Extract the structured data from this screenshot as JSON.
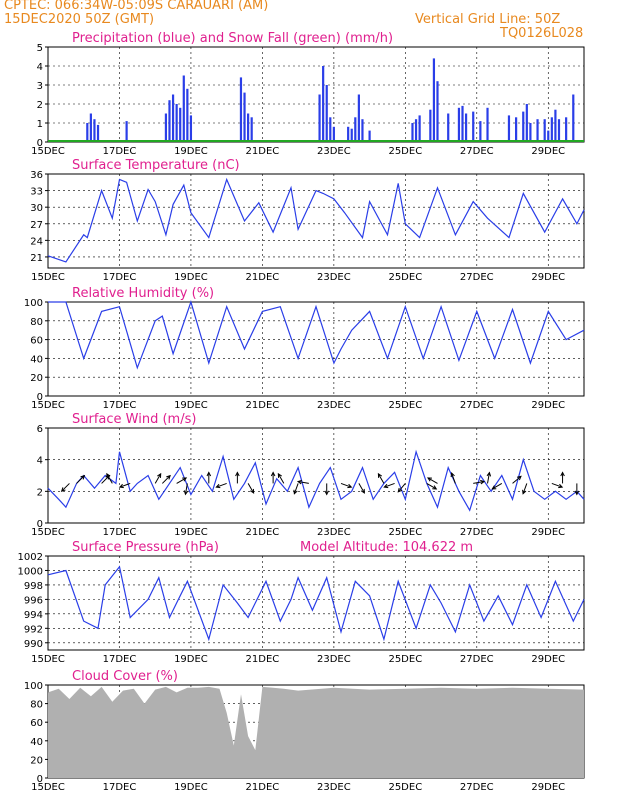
{
  "header": {
    "line1": "CPTEC:   066:34W-05:09S   CARAUARI (AM)",
    "line2": "15DEC2020 50Z (GMT)",
    "grid_note": "Vertical Grid Line: 50Z",
    "code": "TQ0126L028",
    "model_altitude": "Model Altitude: 104.622 m"
  },
  "colors": {
    "header": "#e8891f",
    "title": "#e0208f",
    "series": "#2a3ee8",
    "snow": "#22a822",
    "cloud": "#b0b0b0",
    "wind_arrow": "#000000"
  },
  "x_axis": {
    "ticks": [
      "15DEC",
      "17DEC",
      "19DEC",
      "21DEC",
      "23DEC",
      "25DEC",
      "27DEC",
      "29DEC"
    ],
    "range_days": [
      0,
      15
    ]
  },
  "chart_data": [
    {
      "id": "precip",
      "type": "bar",
      "title": "Precipitation (blue) and Snow Fall (green) (mm/h)",
      "ylim": [
        0,
        5
      ],
      "yticks": [
        0,
        1,
        2,
        3,
        4,
        5
      ],
      "series": [
        {
          "name": "Precipitation",
          "points": [
            [
              1.1,
              1.0
            ],
            [
              1.2,
              1.5
            ],
            [
              1.3,
              1.2
            ],
            [
              1.4,
              0.9
            ],
            [
              2.2,
              1.1
            ],
            [
              3.5,
              0.1
            ],
            [
              3.3,
              1.5
            ],
            [
              3.4,
              2.2
            ],
            [
              3.5,
              2.5
            ],
            [
              3.6,
              2.0
            ],
            [
              3.7,
              1.8
            ],
            [
              3.8,
              3.5
            ],
            [
              3.9,
              2.8
            ],
            [
              4.0,
              1.4
            ],
            [
              5.4,
              3.4
            ],
            [
              5.5,
              2.6
            ],
            [
              5.6,
              1.5
            ],
            [
              5.7,
              1.3
            ],
            [
              7.6,
              2.5
            ],
            [
              7.7,
              4.0
            ],
            [
              7.8,
              3.0
            ],
            [
              7.9,
              1.3
            ],
            [
              8.0,
              0.8
            ],
            [
              8.4,
              0.8
            ],
            [
              8.5,
              0.7
            ],
            [
              8.6,
              1.3
            ],
            [
              8.7,
              2.5
            ],
            [
              8.8,
              1.2
            ],
            [
              9.0,
              0.6
            ],
            [
              10.2,
              1.0
            ],
            [
              10.3,
              1.2
            ],
            [
              10.4,
              1.4
            ],
            [
              10.7,
              1.7
            ],
            [
              10.8,
              4.4
            ],
            [
              10.9,
              3.2
            ],
            [
              11.2,
              1.5
            ],
            [
              11.5,
              1.8
            ],
            [
              11.6,
              1.9
            ],
            [
              11.7,
              1.5
            ],
            [
              11.9,
              1.6
            ],
            [
              12.1,
              1.1
            ],
            [
              12.3,
              1.8
            ],
            [
              12.9,
              1.4
            ],
            [
              13.1,
              1.3
            ],
            [
              13.3,
              1.6
            ],
            [
              13.4,
              2.0
            ],
            [
              13.5,
              1.0
            ],
            [
              13.7,
              1.2
            ],
            [
              13.9,
              1.2
            ],
            [
              14.0,
              0.6
            ],
            [
              14.1,
              1.3
            ],
            [
              14.2,
              1.7
            ],
            [
              14.3,
              1.2
            ],
            [
              14.5,
              1.3
            ],
            [
              14.7,
              2.5
            ]
          ]
        },
        {
          "name": "Snow Fall",
          "points": [
            [
              0,
              0.05
            ],
            [
              15,
              0.05
            ]
          ]
        }
      ]
    },
    {
      "id": "temp",
      "type": "line",
      "title": "Surface Temperature (nC)",
      "ylim": [
        19,
        36
      ],
      "yticks": [
        21,
        24,
        27,
        30,
        33,
        36
      ],
      "x": [
        0,
        0.5,
        1.0,
        1.1,
        1.5,
        1.8,
        2.0,
        2.2,
        2.5,
        2.8,
        3.0,
        3.3,
        3.5,
        3.8,
        4.0,
        4.5,
        5.0,
        5.5,
        5.9,
        6.3,
        6.8,
        7.0,
        7.5,
        7.7,
        8.0,
        8.3,
        8.8,
        9.0,
        9.5,
        9.8,
        10.0,
        10.4,
        10.9,
        11.4,
        11.9,
        12.3,
        12.9,
        13.3,
        13.9,
        14.4,
        14.8,
        15.0
      ],
      "values": [
        21.2,
        20.1,
        25.0,
        24.5,
        33.0,
        28.0,
        35.0,
        34.5,
        27.5,
        33.2,
        31.0,
        25.0,
        30.5,
        34.0,
        29.0,
        24.5,
        35.0,
        27.5,
        30.8,
        25.5,
        33.5,
        26.0,
        33.0,
        32.5,
        31.5,
        29.0,
        24.5,
        31.0,
        25.0,
        34.3,
        27.0,
        24.5,
        33.5,
        25.0,
        31.0,
        28.0,
        24.5,
        32.5,
        25.5,
        31.5,
        27.0,
        29.5
      ]
    },
    {
      "id": "rh",
      "type": "line",
      "title": "Relative Humidity (%)",
      "ylim": [
        0,
        100
      ],
      "yticks": [
        0,
        20,
        40,
        60,
        80,
        100
      ],
      "x": [
        0,
        0.5,
        1.0,
        1.5,
        2.0,
        2.5,
        3.0,
        3.2,
        3.5,
        4.0,
        4.5,
        5.0,
        5.5,
        6.0,
        6.5,
        7.0,
        7.5,
        8.0,
        8.2,
        8.5,
        9.0,
        9.5,
        10.0,
        10.5,
        11.0,
        11.5,
        12.0,
        12.5,
        13.0,
        13.5,
        14.0,
        14.5,
        15.0
      ],
      "values": [
        100,
        100,
        40,
        90,
        95,
        30,
        80,
        85,
        45,
        100,
        35,
        95,
        50,
        90,
        95,
        40,
        95,
        35,
        50,
        70,
        90,
        40,
        95,
        40,
        95,
        38,
        90,
        40,
        92,
        35,
        90,
        60,
        70
      ]
    },
    {
      "id": "wind",
      "type": "line",
      "title": "Surface Wind (m/s)",
      "ylim": [
        0,
        6
      ],
      "yticks": [
        0,
        2,
        4,
        6
      ],
      "x": [
        0,
        0.3,
        0.5,
        0.8,
        1.0,
        1.3,
        1.6,
        1.9,
        2.0,
        2.3,
        2.5,
        2.8,
        3.1,
        3.4,
        3.7,
        4.0,
        4.3,
        4.6,
        4.9,
        5.2,
        5.5,
        5.8,
        6.1,
        6.4,
        6.7,
        7.0,
        7.3,
        7.6,
        7.9,
        8.2,
        8.5,
        8.8,
        9.1,
        9.4,
        9.7,
        10.0,
        10.3,
        10.6,
        10.9,
        11.2,
        11.5,
        11.8,
        12.1,
        12.4,
        12.7,
        13.0,
        13.3,
        13.6,
        13.9,
        14.2,
        14.5,
        14.8,
        15.0
      ],
      "values": [
        2.2,
        1.5,
        1.0,
        2.5,
        3.0,
        2.2,
        3.0,
        2.5,
        4.5,
        2.0,
        2.5,
        3.0,
        1.5,
        2.5,
        3.5,
        1.8,
        3.0,
        2.0,
        4.2,
        1.5,
        2.5,
        3.8,
        1.2,
        2.8,
        2.0,
        3.5,
        1.0,
        2.5,
        3.5,
        1.5,
        2.0,
        3.5,
        1.5,
        2.5,
        3.2,
        1.5,
        4.5,
        2.5,
        1.0,
        3.5,
        2.0,
        0.8,
        3.0,
        2.0,
        3.0,
        1.5,
        4.0,
        2.0,
        1.5,
        2.0,
        1.5,
        2.0,
        1.5
      ]
    },
    {
      "id": "pressure",
      "type": "line",
      "title": "Surface Pressure (hPa)",
      "ylim": [
        989,
        1002
      ],
      "yticks": [
        990,
        992,
        994,
        996,
        998,
        1000,
        1002
      ],
      "x": [
        0,
        0.5,
        1.0,
        1.4,
        1.6,
        2.0,
        2.3,
        2.8,
        3.1,
        3.4,
        3.6,
        3.9,
        4.5,
        4.9,
        5.3,
        5.6,
        6.1,
        6.5,
        6.8,
        7.0,
        7.4,
        7.8,
        8.2,
        8.6,
        9.0,
        9.4,
        9.8,
        10.3,
        10.7,
        11.0,
        11.4,
        11.8,
        12.2,
        12.6,
        13.0,
        13.4,
        13.8,
        14.2,
        14.7,
        15.0
      ],
      "values": [
        999.4,
        1000.0,
        993.0,
        992.0,
        998.0,
        1000.5,
        993.5,
        996.0,
        999.0,
        993.5,
        995.5,
        998.5,
        990.5,
        998.0,
        995.5,
        993.5,
        998.5,
        993.0,
        996.0,
        999.0,
        994.5,
        999.0,
        991.5,
        998.5,
        996.5,
        990.5,
        998.5,
        992.0,
        998.0,
        995.5,
        991.5,
        998.0,
        993.0,
        996.5,
        992.5,
        998.0,
        993.5,
        998.5,
        993.0,
        996.0
      ]
    },
    {
      "id": "cloud",
      "type": "area",
      "title": "Cloud Cover (%)",
      "ylim": [
        0,
        100
      ],
      "yticks": [
        0,
        20,
        40,
        60,
        80,
        100
      ],
      "x": [
        0,
        0.3,
        0.6,
        0.9,
        1.2,
        1.5,
        1.8,
        2.1,
        2.4,
        2.7,
        3.0,
        3.3,
        3.6,
        3.9,
        4.2,
        4.5,
        4.8,
        5.0,
        5.2,
        5.4,
        5.6,
        5.8,
        6.0,
        6.3,
        6.6,
        7.0,
        8.0,
        9.0,
        10.0,
        11.0,
        12.0,
        13.0,
        14.0,
        15.0
      ],
      "values": [
        92,
        96,
        85,
        97,
        88,
        98,
        82,
        94,
        96,
        80,
        95,
        98,
        92,
        97,
        97,
        98,
        96,
        70,
        35,
        90,
        45,
        30,
        98,
        97,
        96,
        94,
        97,
        95,
        96,
        97,
        96,
        97,
        96,
        95
      ]
    }
  ],
  "wind_arrows": {
    "note": "direction in degrees (meteorological style screen angle), magnitude in m/s",
    "items": [
      [
        0.6,
        225
      ],
      [
        0.8,
        45
      ],
      [
        1.5,
        45
      ],
      [
        1.8,
        120
      ],
      [
        2.3,
        200
      ],
      [
        3.0,
        60
      ],
      [
        3.2,
        45
      ],
      [
        3.6,
        30
      ],
      [
        3.9,
        260
      ],
      [
        4.5,
        90
      ],
      [
        5.0,
        200
      ],
      [
        5.3,
        90
      ],
      [
        5.6,
        300
      ],
      [
        6.3,
        90
      ],
      [
        6.6,
        120
      ],
      [
        7.0,
        250
      ],
      [
        7.3,
        170
      ],
      [
        7.8,
        270
      ],
      [
        8.2,
        340
      ],
      [
        8.7,
        300
      ],
      [
        9.4,
        120
      ],
      [
        9.7,
        200
      ],
      [
        10.0,
        230
      ],
      [
        10.6,
        330
      ],
      [
        10.9,
        150
      ],
      [
        11.4,
        110
      ],
      [
        11.9,
        10
      ],
      [
        12.3,
        80
      ],
      [
        12.7,
        210
      ],
      [
        13.0,
        40
      ],
      [
        13.4,
        250
      ],
      [
        14.1,
        340
      ],
      [
        14.4,
        90
      ],
      [
        14.8,
        270
      ]
    ]
  }
}
